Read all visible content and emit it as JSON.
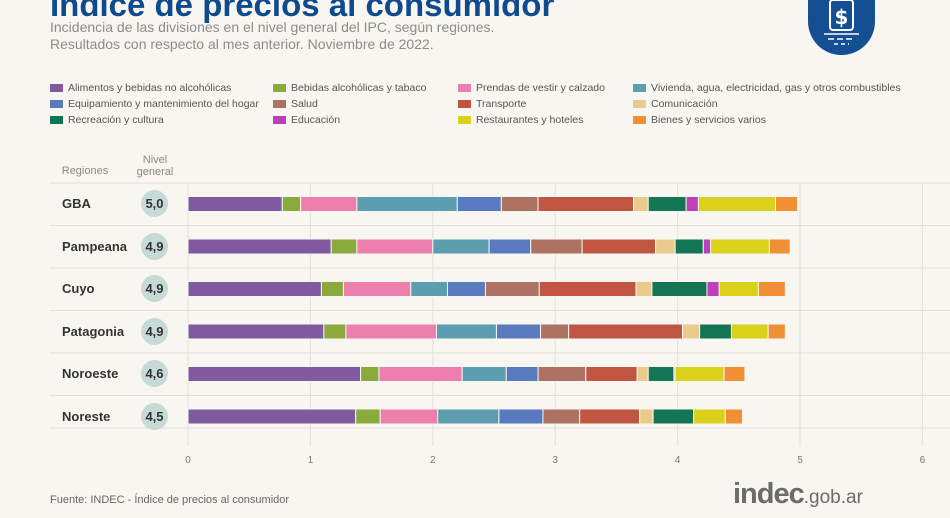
{
  "header": {
    "title": "Índice de precios al consumidor",
    "subtitle_line1": "Incidencia de las divisiones en el nivel general del IPC, según regiones.",
    "subtitle_line2": "Resultados con respecto al mes anterior. Noviembre de 2022.",
    "badge_icon": "dollar-document-icon",
    "badge_color": "#134f92"
  },
  "footer": {
    "source": "Fuente: INDEC - Índice de precios al consumidor",
    "logo_main": "indec",
    "logo_suffix": ".gob.ar"
  },
  "chart_data": {
    "type": "bar",
    "orientation": "horizontal",
    "stacked": true,
    "column_headers": {
      "regions": "Regiones",
      "level": "Nivel general"
    },
    "categories": [
      "GBA",
      "Pampeana",
      "Cuyo",
      "Patagonia",
      "Noroeste",
      "Noreste"
    ],
    "nivel_general": [
      "5,0",
      "4,9",
      "4,9",
      "4,9",
      "4,6",
      "4,5"
    ],
    "xlim": [
      0,
      6
    ],
    "xticks": [
      "0",
      "1",
      "2",
      "3",
      "4",
      "5",
      "6"
    ],
    "grid": true,
    "legend_position": "top",
    "series": [
      {
        "name": "Alimentos y bebidas no alcohólicas",
        "color": "#7f5a9e",
        "values": [
          0.77,
          1.17,
          1.09,
          1.11,
          1.41,
          1.37
        ]
      },
      {
        "name": "Bebidas alcohólicas y tabaco",
        "color": "#8aab3c",
        "values": [
          0.15,
          0.21,
          0.18,
          0.18,
          0.15,
          0.2
        ]
      },
      {
        "name": "Prendas de vestir y calzado",
        "color": "#ec7fab",
        "values": [
          0.46,
          0.62,
          0.55,
          0.74,
          0.68,
          0.47
        ]
      },
      {
        "name": "Vivienda, agua, electricidad, gas y otros combustibles",
        "color": "#5d9db0",
        "values": [
          0.82,
          0.46,
          0.3,
          0.49,
          0.36,
          0.5
        ]
      },
      {
        "name": "Equipamiento y mantenimiento del hogar",
        "color": "#5a7abf",
        "values": [
          0.36,
          0.34,
          0.31,
          0.36,
          0.26,
          0.36
        ]
      },
      {
        "name": "Salud",
        "color": "#ad7262",
        "values": [
          0.3,
          0.42,
          0.44,
          0.23,
          0.39,
          0.3
        ]
      },
      {
        "name": "Transporte",
        "color": "#c05641",
        "values": [
          0.78,
          0.6,
          0.79,
          0.93,
          0.42,
          0.49
        ]
      },
      {
        "name": "Comunicación",
        "color": "#ebcb8c",
        "values": [
          0.12,
          0.16,
          0.13,
          0.14,
          0.09,
          0.11
        ]
      },
      {
        "name": "Recreación y cultura",
        "color": "#127553",
        "values": [
          0.31,
          0.23,
          0.45,
          0.26,
          0.21,
          0.33
        ]
      },
      {
        "name": "Educación",
        "color": "#bf3fbb",
        "values": [
          0.1,
          0.06,
          0.1,
          0.0,
          0.01,
          0.0
        ]
      },
      {
        "name": "Restaurantes y hoteles",
        "color": "#dbd11a",
        "values": [
          0.63,
          0.48,
          0.32,
          0.3,
          0.4,
          0.26
        ]
      },
      {
        "name": "Bienes y servicios varios",
        "color": "#f18f34",
        "values": [
          0.18,
          0.17,
          0.22,
          0.14,
          0.17,
          0.14
        ]
      }
    ]
  }
}
